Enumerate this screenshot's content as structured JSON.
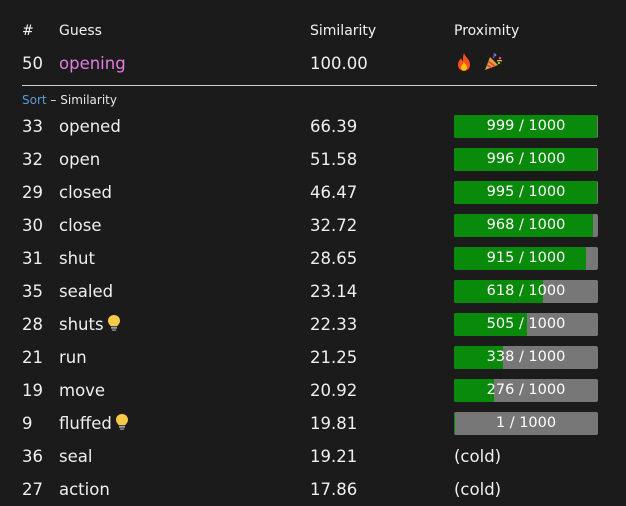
{
  "headers": {
    "num": "#",
    "guess": "Guess",
    "similarity": "Similarity",
    "proximity": "Proximity"
  },
  "top_guess": {
    "num": "50",
    "word": "opening",
    "similarity": "100.00",
    "icons": [
      "fire-icon",
      "party-popper-icon"
    ]
  },
  "sort": {
    "link": "Sort",
    "separator": " – ",
    "label": "Similarity"
  },
  "colors": {
    "bar_fill": "#0a8a0a",
    "bar_track": "#777777",
    "top_word": "#e27de2",
    "sort_link": "#5b9bd9",
    "background": "#1b1b1b"
  },
  "rows": [
    {
      "num": "33",
      "word": "opened",
      "similarity": "66.39",
      "proximity": "999 / 1000",
      "fill": 0.995,
      "hint": false
    },
    {
      "num": "32",
      "word": "open",
      "similarity": "51.58",
      "proximity": "996 / 1000",
      "fill": 0.99,
      "hint": false
    },
    {
      "num": "29",
      "word": "closed",
      "similarity": "46.47",
      "proximity": "995 / 1000",
      "fill": 0.99,
      "hint": false
    },
    {
      "num": "30",
      "word": "close",
      "similarity": "32.72",
      "proximity": "968 / 1000",
      "fill": 0.965,
      "hint": false
    },
    {
      "num": "31",
      "word": "shut",
      "similarity": "28.65",
      "proximity": "915 / 1000",
      "fill": 0.915,
      "hint": false
    },
    {
      "num": "35",
      "word": "sealed",
      "similarity": "23.14",
      "proximity": "618 / 1000",
      "fill": 0.618,
      "hint": false
    },
    {
      "num": "28",
      "word": "shuts",
      "similarity": "22.33",
      "proximity": "505 / 1000",
      "fill": 0.505,
      "hint": true
    },
    {
      "num": "21",
      "word": "run",
      "similarity": "21.25",
      "proximity": "338 / 1000",
      "fill": 0.338,
      "hint": false
    },
    {
      "num": "19",
      "word": "move",
      "similarity": "20.92",
      "proximity": "276 / 1000",
      "fill": 0.276,
      "hint": false
    },
    {
      "num": "9",
      "word": "fluffed",
      "similarity": "19.81",
      "proximity": "1 / 1000",
      "fill": 0.001,
      "hint": true
    },
    {
      "num": "36",
      "word": "seal",
      "similarity": "19.21",
      "proximity": "(cold)",
      "fill": null,
      "hint": false
    },
    {
      "num": "27",
      "word": "action",
      "similarity": "17.86",
      "proximity": "(cold)",
      "fill": null,
      "hint": false
    }
  ]
}
